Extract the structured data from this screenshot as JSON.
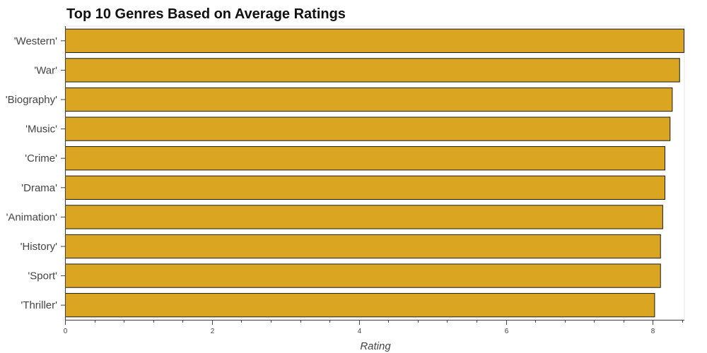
{
  "chart_data": {
    "type": "bar",
    "orientation": "horizontal",
    "title": "Top 10 Genres Based on Average Ratings",
    "xlabel": "Rating",
    "ylabel": "",
    "categories": [
      "'Western'",
      "'War'",
      "'Biography'",
      "'Music'",
      "'Crime'",
      "'Drama'",
      "'Animation'",
      "'History'",
      "'Sport'",
      "'Thriller'"
    ],
    "values": [
      8.42,
      8.36,
      8.26,
      8.23,
      8.16,
      8.16,
      8.13,
      8.1,
      8.1,
      8.02
    ],
    "xlim": [
      0,
      8.42
    ],
    "xticks": [
      0,
      2,
      4,
      6,
      8
    ],
    "grid": false,
    "legend": "none",
    "colors": {
      "bar_fill": "#DAA520",
      "bar_stroke": "#1a1a1a",
      "axis": "#444444"
    }
  }
}
